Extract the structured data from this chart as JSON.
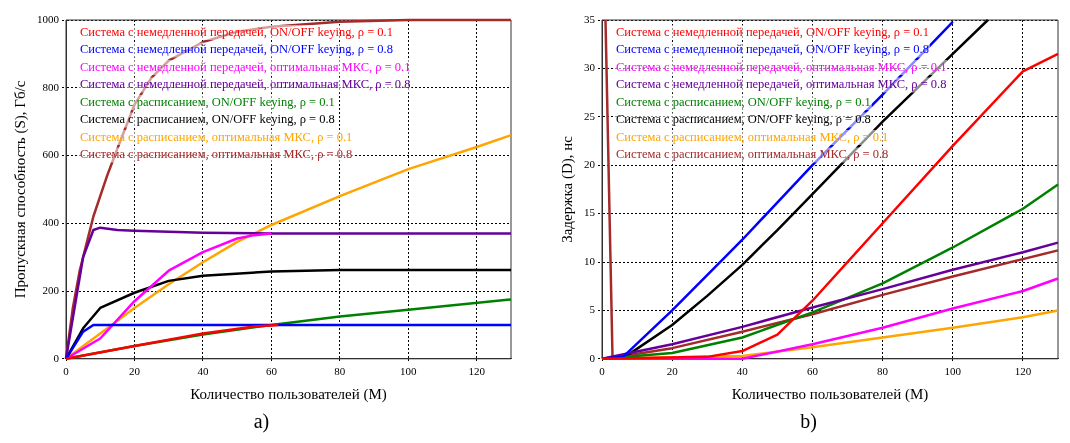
{
  "chart_data": [
    {
      "type": "line",
      "xlabel": "Количество пользователей (M)",
      "ylabel": "Пропускная способность (S), Гб/с",
      "xlim": [
        0,
        130
      ],
      "xticks": [
        0,
        20,
        40,
        60,
        80,
        100,
        120
      ],
      "ylim": [
        0,
        1000
      ],
      "yticks": [
        0,
        200,
        400,
        600,
        800,
        1000
      ],
      "grid": true,
      "legend": "top left",
      "annotations": [
        "a)"
      ],
      "series": [
        {
          "name": "Система с немедленной передачей, ON/OFF keying, ρ = 0.1",
          "color": "#ff0000",
          "x": [
            0,
            20,
            40,
            55,
            62
          ],
          "values": [
            0,
            38,
            75,
            95,
            100
          ]
        },
        {
          "name": "Система с немедленной передачей, ON/OFF keying, ρ = 0.8",
          "color": "#0000ff",
          "x": [
            0,
            5,
            8,
            15,
            130
          ],
          "values": [
            0,
            80,
            100,
            100,
            100
          ]
        },
        {
          "name": "Система с немедленной передачей, оптимальная МКС, ρ = 0.1",
          "color": "#ff00ff",
          "x": [
            0,
            10,
            20,
            30,
            40,
            50,
            55,
            60
          ],
          "values": [
            0,
            60,
            170,
            260,
            315,
            355,
            365,
            370
          ]
        },
        {
          "name": "Система с немедленной передачей, оптимальная МКС, ρ = 0.8",
          "color": "#660099",
          "x": [
            0,
            5,
            8,
            10,
            15,
            20,
            40,
            60,
            130
          ],
          "values": [
            0,
            300,
            380,
            387,
            380,
            378,
            372,
            370,
            370
          ]
        },
        {
          "name": "Система с расписанием, ON/OFF keying, ρ = 0.1",
          "color": "#008000",
          "x": [
            0,
            20,
            40,
            60,
            80,
            100,
            130
          ],
          "values": [
            0,
            38,
            72,
            100,
            125,
            145,
            175
          ]
        },
        {
          "name": "Система с расписанием, ON/OFF keying, ρ = 0.8",
          "color": "#000000",
          "x": [
            0,
            5,
            10,
            20,
            30,
            40,
            60,
            80,
            130
          ],
          "values": [
            0,
            90,
            150,
            195,
            230,
            245,
            258,
            262,
            262
          ]
        },
        {
          "name": "Система с расписанием, оптимальная МКС, ρ = 0.1",
          "color": "#ffa500",
          "x": [
            0,
            10,
            20,
            30,
            40,
            50,
            60,
            80,
            100,
            120,
            130
          ],
          "values": [
            0,
            75,
            150,
            220,
            285,
            345,
            395,
            480,
            560,
            625,
            660
          ]
        },
        {
          "name": "Система с расписанием, оптимальная МКС, ρ = 0.8",
          "color": "#a52a2a",
          "x": [
            0,
            2,
            4,
            6,
            8,
            10,
            12,
            15,
            20,
            25,
            30,
            40,
            50,
            60,
            80,
            100,
            130
          ],
          "values": [
            0,
            150,
            260,
            340,
            420,
            480,
            540,
            620,
            750,
            830,
            880,
            935,
            965,
            980,
            995,
            1000,
            1000
          ]
        }
      ]
    },
    {
      "type": "line",
      "xlabel": "Количество пользователей (M)",
      "ylabel": "Задержка (D), нс",
      "xlim": [
        0,
        130
      ],
      "xticks": [
        0,
        20,
        40,
        60,
        80,
        100,
        120
      ],
      "ylim": [
        0,
        35
      ],
      "yticks": [
        0,
        5,
        10,
        15,
        20,
        25,
        30,
        35
      ],
      "grid": true,
      "legend": "top left",
      "annotations": [
        "b)"
      ],
      "series": [
        {
          "name": "Система с немедленной передачей, ON/OFF keying, ρ = 0.1",
          "color": "#ff0000",
          "x": [
            0,
            30,
            40,
            50,
            60,
            80,
            100,
            120,
            130
          ],
          "values": [
            0,
            0.2,
            0.8,
            2.5,
            6,
            14,
            22,
            29.7,
            31.5
          ]
        },
        {
          "name": "Система с немедленной передачей, ON/OFF keying, ρ = 0.8",
          "color": "#0000ff",
          "x": [
            0,
            6,
            20,
            40,
            60,
            80,
            100
          ],
          "values": [
            0,
            0.2,
            5,
            12.3,
            20,
            27.3,
            34.8
          ]
        },
        {
          "name": "Система с немедленной передачей, оптимальная МКС, ρ = 0.1",
          "color": "#ff00ff",
          "x": [
            0,
            40,
            60,
            80,
            100,
            120,
            130
          ],
          "values": [
            0,
            0,
            1.5,
            3.2,
            5.2,
            7,
            8.3
          ]
        },
        {
          "name": "Система с немедленной передачей, оптимальная МКС, ρ = 0.8",
          "color": "#660099",
          "x": [
            0,
            20,
            40,
            60,
            80,
            100,
            120,
            130
          ],
          "values": [
            0,
            1.5,
            3.3,
            5.3,
            7.2,
            9.2,
            11,
            12
          ]
        },
        {
          "name": "Система с расписанием, ON/OFF keying, ρ = 0.1",
          "color": "#008000",
          "x": [
            0,
            20,
            40,
            60,
            80,
            100,
            120,
            130
          ],
          "values": [
            0,
            0.6,
            2.2,
            4.8,
            7.8,
            11.5,
            15.5,
            18
          ]
        },
        {
          "name": "Система с расписанием, ON/OFF keying, ρ = 0.8",
          "color": "#000000",
          "x": [
            0,
            7,
            20,
            30,
            40,
            50,
            60,
            80,
            100,
            110
          ],
          "values": [
            0,
            0.3,
            3.5,
            6.5,
            9.7,
            13.3,
            17,
            24.5,
            31.5,
            35
          ]
        },
        {
          "name": "Система с расписанием, оптимальная МКС, ρ = 0.1",
          "color": "#ffa500",
          "x": [
            0,
            40,
            60,
            80,
            100,
            120,
            130
          ],
          "values": [
            0,
            0.3,
            1.2,
            2.2,
            3.2,
            4.3,
            5
          ]
        },
        {
          "name": "Система с расписанием, оптимальная МКС, ρ = 0.8",
          "color": "#a52a2a",
          "x": [
            1,
            3,
            20,
            40,
            60,
            80,
            100,
            120,
            130
          ],
          "values": [
            35,
            0.1,
            1.1,
            2.8,
            4.6,
            6.6,
            8.5,
            10.3,
            11.2
          ]
        }
      ]
    }
  ]
}
